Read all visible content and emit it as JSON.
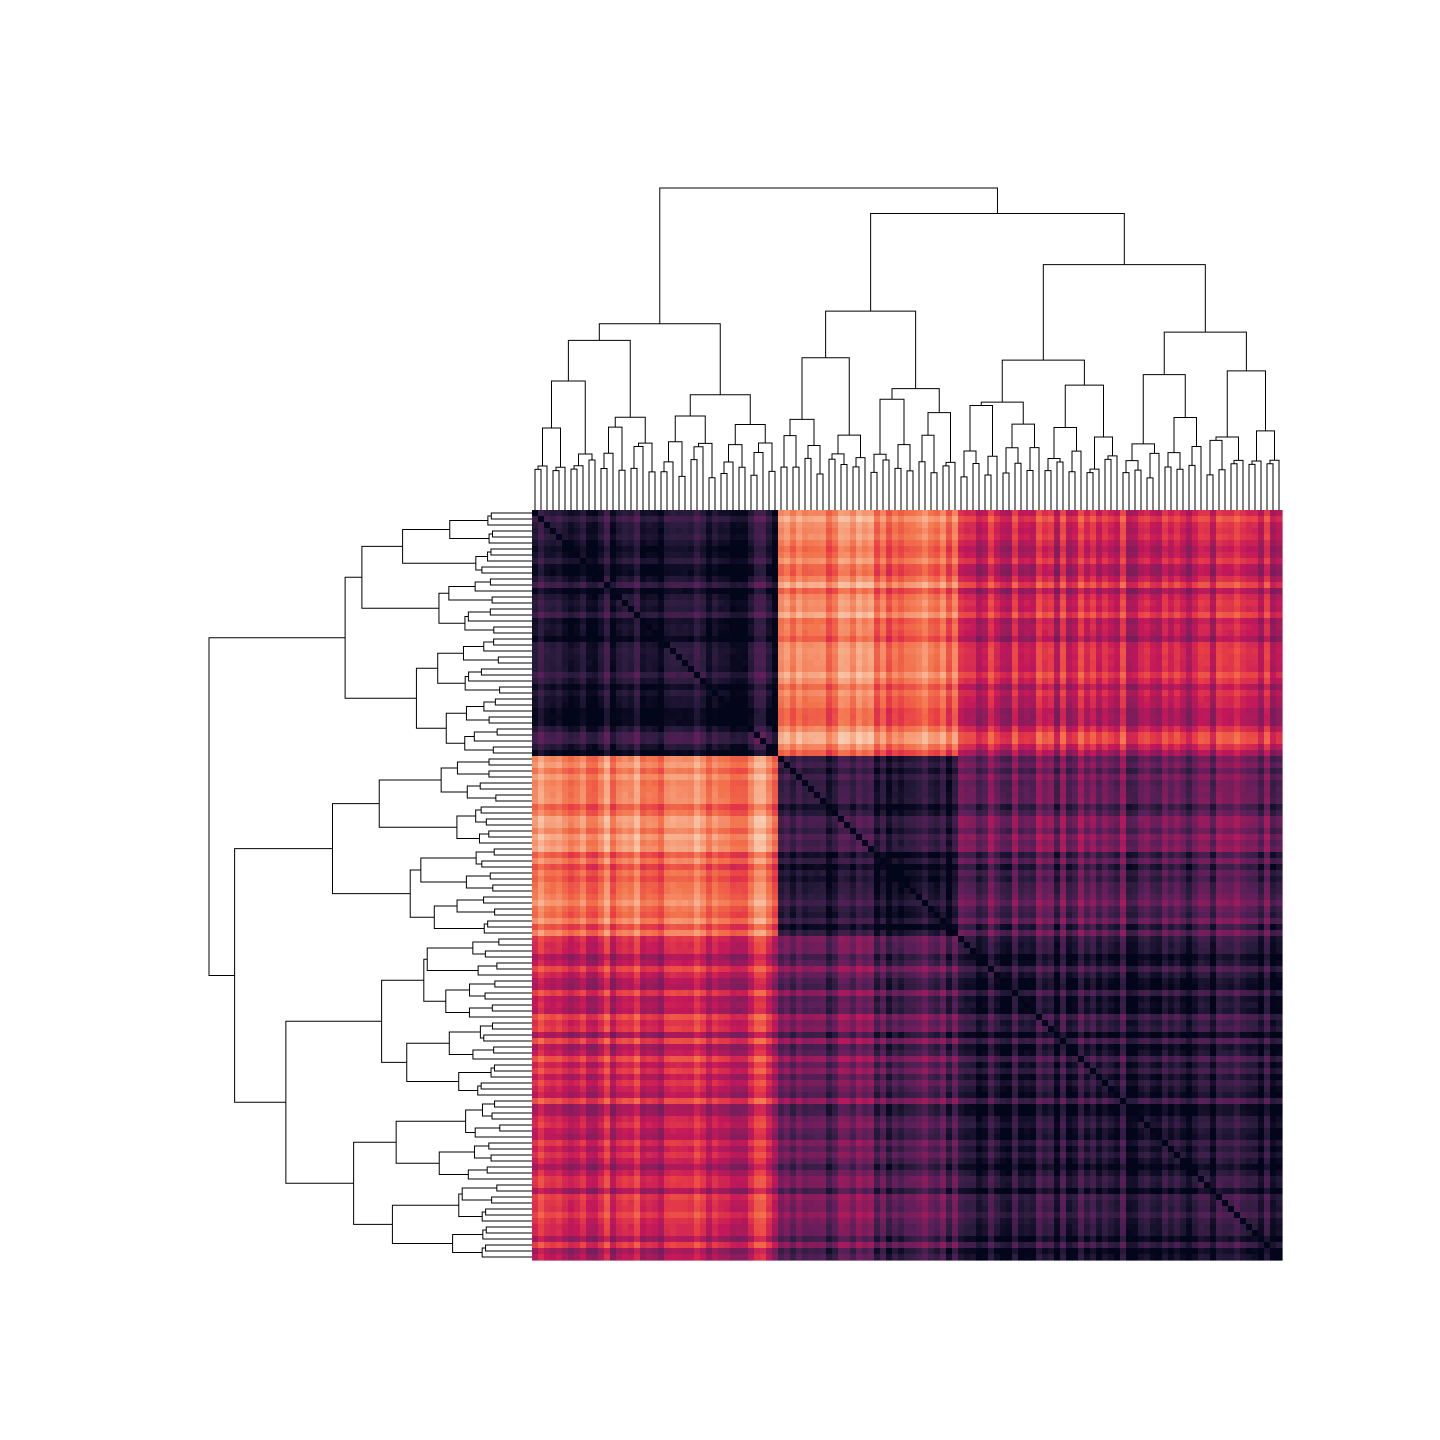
{
  "chart_data": {
    "type": "heatmap",
    "title": "",
    "xlabel": "",
    "ylabel": "",
    "n": 125,
    "clusters": [
      {
        "order": 1,
        "size": 41
      },
      {
        "order": 2,
        "size": 30
      },
      {
        "order": 3,
        "size": 54
      }
    ],
    "value_range": [
      0,
      1
    ],
    "within_cluster_level": 0.1,
    "between_cluster_levels": [
      [
        0.07,
        0.68,
        0.47
      ],
      [
        0.68,
        0.08,
        0.22
      ],
      [
        0.47,
        0.22,
        0.09
      ]
    ],
    "diagonal_value": 0.0,
    "row_dendrogram": true,
    "col_dendrogram": true,
    "colorbar": false,
    "colormap": "rocket",
    "colormap_stops": [
      "#03051a",
      "#2c1d3f",
      "#5b1f5a",
      "#8d1c5c",
      "#c4185a",
      "#e83e45",
      "#f2704a",
      "#f6a07c",
      "#f8cdb2",
      "#faebdd"
    ],
    "dendrogram_color": "#000000"
  }
}
